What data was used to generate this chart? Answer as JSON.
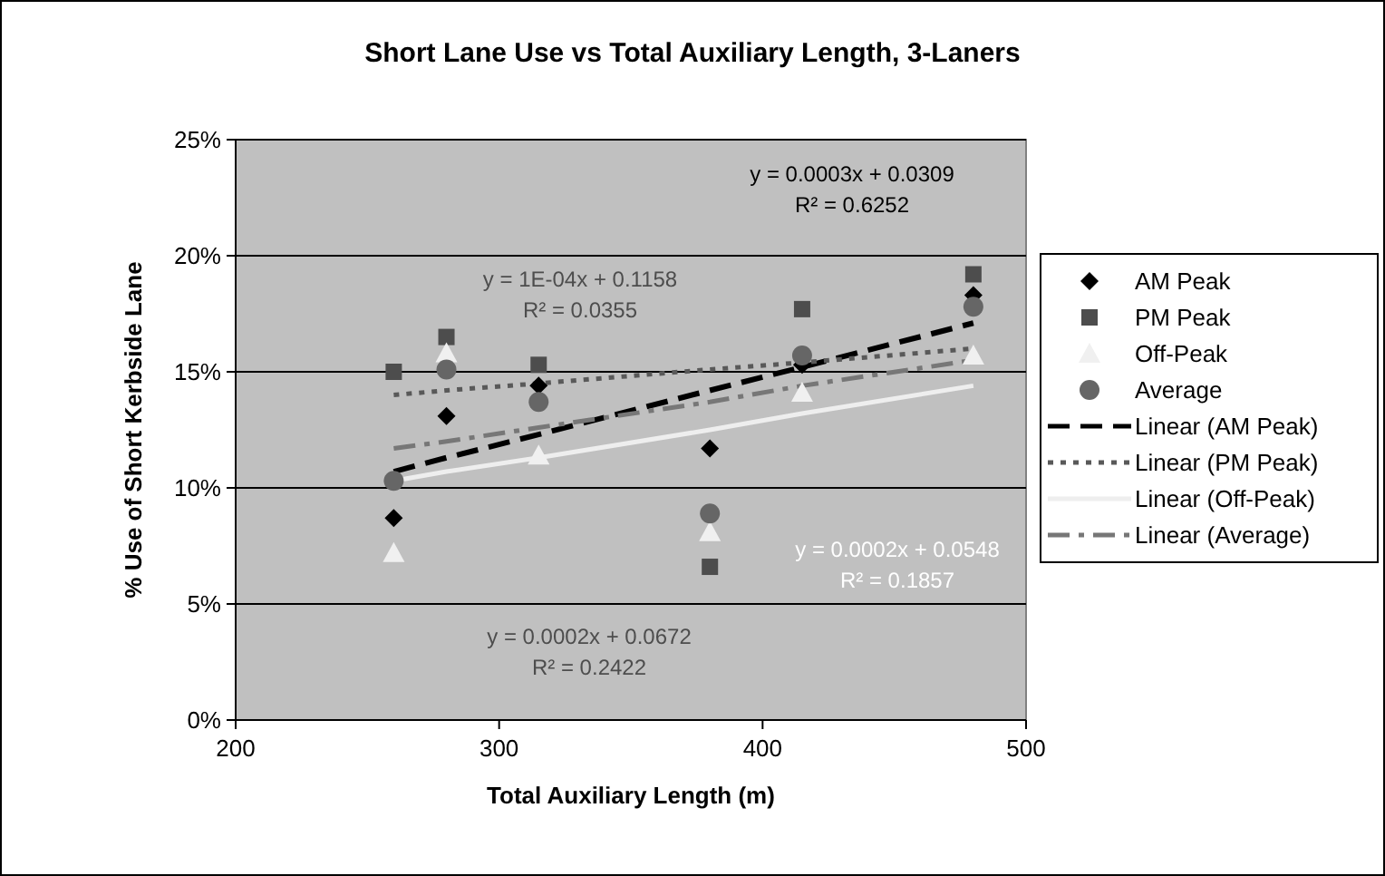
{
  "chart_data": {
    "type": "scatter",
    "title": "Short Lane Use vs Total Auxiliary Length, 3-Laners",
    "xlabel": "Total Auxiliary Length (m)",
    "ylabel": "% Use of Short Kerbside Lane",
    "x": [
      260,
      280,
      315,
      380,
      415,
      480
    ],
    "series": [
      {
        "name": "AM Peak",
        "color": "#000000",
        "marker": "diamond",
        "values": [
          8.7,
          13.1,
          14.4,
          11.7,
          15.3,
          18.3
        ]
      },
      {
        "name": "PM Peak",
        "color": "#4d4d4d",
        "marker": "square",
        "values": [
          15.0,
          16.5,
          15.3,
          6.6,
          17.7,
          19.2
        ]
      },
      {
        "name": "Off-Peak",
        "color": "#f0f0f0",
        "marker": "triangle",
        "values": [
          7.2,
          15.8,
          11.4,
          8.1,
          14.1,
          15.7
        ]
      },
      {
        "name": "Average",
        "color": "#666666",
        "marker": "circle",
        "values": [
          10.3,
          15.1,
          13.7,
          8.9,
          15.7,
          17.8
        ]
      },
      {
        "name": "Linear (AM Peak)",
        "type": "line",
        "color": "#000000",
        "line_style": "dashed",
        "values": [
          10.7,
          11.3,
          12.3,
          14.2,
          15.2,
          17.1
        ]
      },
      {
        "name": "Linear (PM Peak)",
        "type": "line",
        "color": "#595959",
        "line_style": "dotted",
        "values": [
          14.0,
          14.2,
          14.5,
          15.1,
          15.4,
          16.0
        ]
      },
      {
        "name": "Linear (Off-Peak)",
        "type": "line",
        "color": "#eeeeee",
        "line_style": "solid",
        "values": [
          10.3,
          10.7,
          11.3,
          12.5,
          13.2,
          14.4
        ]
      },
      {
        "name": "Linear (Average)",
        "type": "line",
        "color": "#777777",
        "line_style": "dashed",
        "values": [
          11.7,
          12.0,
          12.6,
          13.7,
          14.4,
          15.5
        ]
      }
    ],
    "xlim": [
      200,
      500
    ],
    "xticks": [
      200,
      300,
      400,
      500
    ],
    "ylim": [
      0,
      25
    ],
    "yticks": [
      {
        "value": 0,
        "label": "0%"
      },
      {
        "value": 5,
        "label": "5%"
      },
      {
        "value": 10,
        "label": "10%"
      },
      {
        "value": 15,
        "label": "15%"
      },
      {
        "value": 20,
        "label": "20%"
      },
      {
        "value": 25,
        "label": "25%"
      }
    ],
    "grid": "y",
    "legend": "right",
    "annotations": [
      "y = 0.0003x + 0.0309\nR² = 0.6252",
      "y = 1E-04x + 0.1158\nR² = 0.0355",
      "y = 0.0002x + 0.0548\nR² = 0.1857",
      "y = 0.0002x + 0.0672\nR² = 0.2422"
    ]
  }
}
